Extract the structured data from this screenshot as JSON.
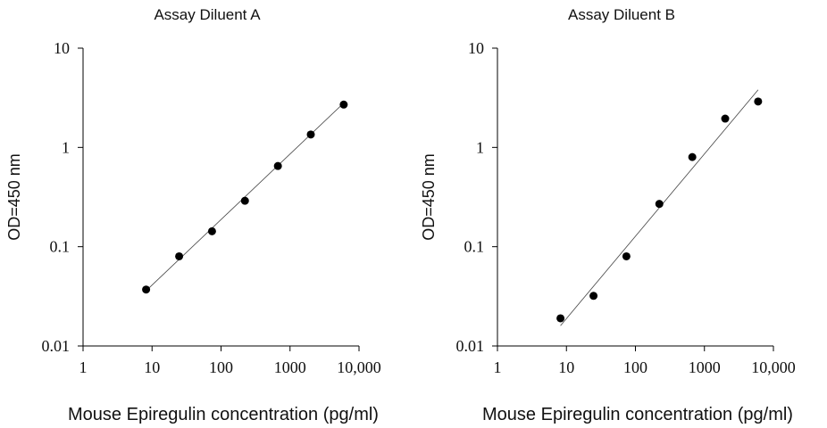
{
  "xlabel_text": "Mouse Epiregulin concentration (pg/ml)",
  "ylabel_text": "OD=450 nm",
  "chart_data": [
    {
      "type": "scatter",
      "title": "Assay Diluent A",
      "xlabel": "Mouse Epiregulin concentration (pg/ml)",
      "ylabel": "OD=450 nm",
      "xscale": "log",
      "yscale": "log",
      "xlim": [
        1,
        10000
      ],
      "ylim": [
        0.01,
        10
      ],
      "xticks": [
        "1",
        "10",
        "100",
        "1000",
        "10,000"
      ],
      "yticks": [
        "0.01",
        "0.1",
        "1",
        "10"
      ],
      "grid": false,
      "x": [
        8.2,
        24.7,
        74,
        222,
        667,
        2000,
        6000
      ],
      "y": [
        0.037,
        0.08,
        0.143,
        0.29,
        0.65,
        1.35,
        2.7
      ],
      "fit_line": {
        "x": [
          8.2,
          6000
        ],
        "y": [
          0.036,
          2.8
        ]
      }
    },
    {
      "type": "scatter",
      "title": "Assay Diluent B",
      "xlabel": "Mouse Epiregulin concentration (pg/ml)",
      "ylabel": "OD=450 nm",
      "xscale": "log",
      "yscale": "log",
      "xlim": [
        1,
        10000
      ],
      "ylim": [
        0.01,
        10
      ],
      "xticks": [
        "1",
        "10",
        "100",
        "1000",
        "10,000"
      ],
      "yticks": [
        "0.01",
        "0.1",
        "1",
        "10"
      ],
      "grid": false,
      "x": [
        8.2,
        24.7,
        74,
        222,
        667,
        2000,
        6000
      ],
      "y": [
        0.019,
        0.032,
        0.08,
        0.27,
        0.8,
        1.95,
        2.9
      ],
      "fit_line": {
        "x": [
          8.2,
          6000
        ],
        "y": [
          0.016,
          3.8
        ]
      }
    }
  ]
}
